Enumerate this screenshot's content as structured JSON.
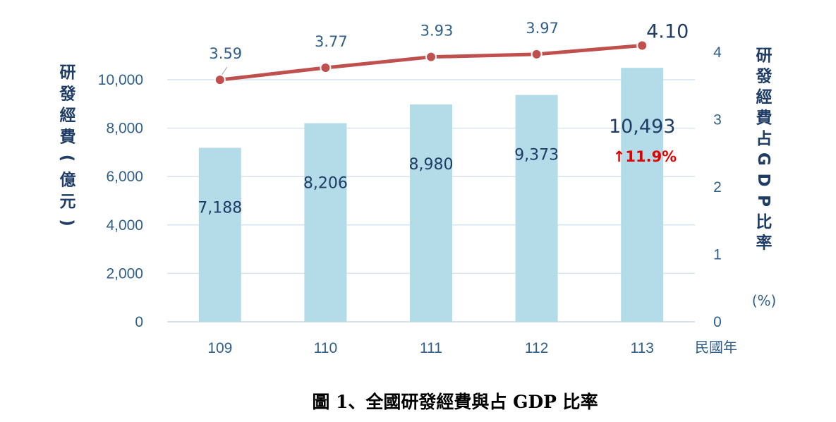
{
  "chart_data": {
    "type": "bar",
    "categories": [
      "109",
      "110",
      "111",
      "112",
      "113"
    ],
    "x_unit": "民國年",
    "series": [
      {
        "kind": "bar",
        "axis": "left",
        "values": [
          7188,
          8206,
          8980,
          9373,
          10493
        ],
        "labels": [
          "7,188",
          "8,206",
          "8,980",
          "9,373",
          "10,493"
        ]
      },
      {
        "kind": "line",
        "axis": "right",
        "values": [
          3.59,
          3.77,
          3.93,
          3.97,
          4.1
        ],
        "labels": [
          "3.59",
          "3.77",
          "3.93",
          "3.97",
          "4.10"
        ]
      }
    ],
    "left_axis": {
      "title_chars": [
        "研",
        "發",
        "經",
        "費",
        "(",
        "億",
        "元",
        ")"
      ],
      "range": [
        0,
        10000
      ],
      "ticks": [
        0,
        2000,
        4000,
        6000,
        8000,
        10000
      ],
      "tick_labels": [
        "0",
        "2,000",
        "4,000",
        "6,000",
        "8,000",
        "10,000"
      ]
    },
    "right_axis": {
      "title_chars": [
        "研",
        "發",
        "經",
        "費",
        "占",
        "G",
        "D",
        "P",
        "比",
        "率"
      ],
      "unit": "(%)",
      "range": [
        0,
        4
      ],
      "ticks": [
        0,
        1,
        2,
        3,
        4
      ],
      "tick_labels": [
        "0",
        "1",
        "2",
        "3",
        "4"
      ]
    },
    "growth_annotation": "↑11.9%",
    "caption": "圖 1、全國研發經費與占 GDP 比率",
    "grid": true,
    "colors": {
      "bar": "#b4dce8",
      "line": "#c0504d",
      "grid": "#d6e4f0"
    }
  }
}
